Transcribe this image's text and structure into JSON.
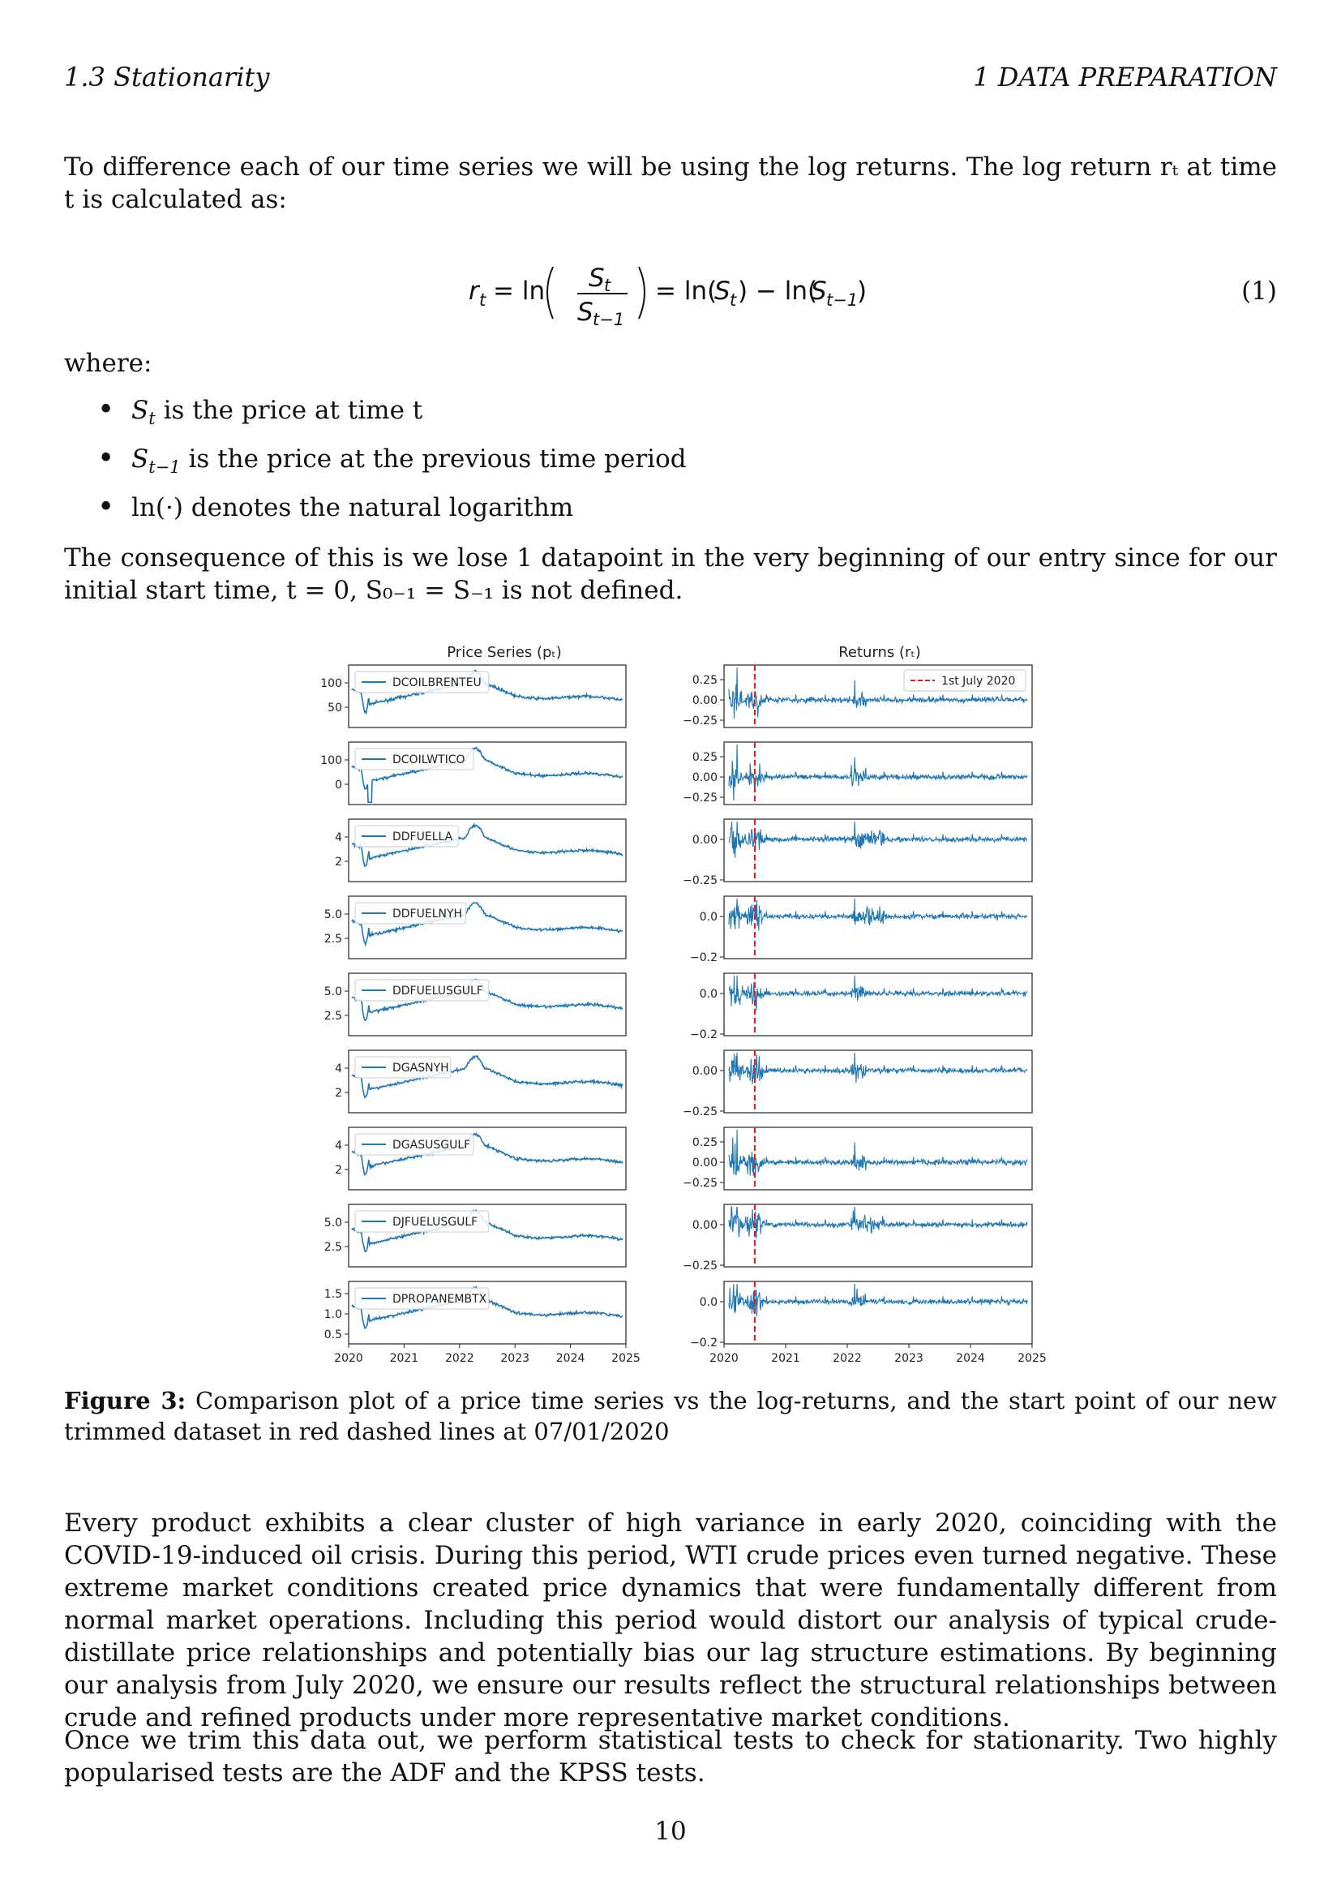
{
  "header": {
    "left": "1.3    Stationarity",
    "right": "1    DATA PREPARATION"
  },
  "intro": "To difference each of our time series we will be using the log returns.  The log return rₜ at time t is calculated as:",
  "equation": {
    "number": "(1)"
  },
  "where_label": "where:",
  "bullets": [
    "is the price at time t",
    "is the price at the previous time period",
    "denotes the natural logarithm"
  ],
  "consequence": "The consequence of this is we lose 1 datapoint in the very beginning of our entry since for our initial start time, t = 0, S₀₋₁ = S₋₁ is not defined.",
  "chart_data": [
    {
      "type": "line",
      "title": "Price Series (pₜ)",
      "x_ticks": [
        "2020",
        "2021",
        "2022",
        "2023",
        "2024",
        "2025"
      ],
      "xlim": [
        2020,
        2025
      ],
      "panels": [
        {
          "name": "DCOILBRENTEU",
          "yticks": [
            "100",
            "50"
          ],
          "ylim": [
            0,
            140
          ]
        },
        {
          "name": "DCOILWTICO",
          "yticks": [
            "100",
            "0"
          ],
          "ylim": [
            -40,
            140
          ]
        },
        {
          "name": "DDFUELLA",
          "yticks": [
            "4",
            "2"
          ],
          "ylim": [
            0.8,
            5
          ]
        },
        {
          "name": "DDFUELNYH",
          "yticks": [
            "5.0",
            "2.5"
          ],
          "ylim": [
            0.8,
            5.6
          ]
        },
        {
          "name": "DDFUELUSGULF",
          "yticks": [
            "5.0",
            "2.5"
          ],
          "ylim": [
            0.8,
            5.6
          ]
        },
        {
          "name": "DGASNYH",
          "yticks": [
            "4",
            "2"
          ],
          "ylim": [
            0.5,
            4.8
          ]
        },
        {
          "name": "DGASUSGULF",
          "yticks": [
            "4",
            "2"
          ],
          "ylim": [
            0.5,
            4.8
          ]
        },
        {
          "name": "DJFUELUSGULF",
          "yticks": [
            "5.0",
            "2.5"
          ],
          "ylim": [
            0.6,
            5.5
          ]
        },
        {
          "name": "DPROPANEMBTX",
          "yticks": [
            "1.5",
            "1.0",
            "0.5"
          ],
          "ylim": [
            0.25,
            1.65
          ]
        }
      ]
    },
    {
      "type": "line",
      "title": "Returns (rₜ)",
      "x_ticks": [
        "2020",
        "2021",
        "2022",
        "2023",
        "2024",
        "2025"
      ],
      "xlim": [
        2020,
        2025
      ],
      "legend": "1st July 2020",
      "vline_date": "2020-07-01",
      "panels": [
        {
          "yticks": [
            "0.25",
            "0.00",
            "−0.25"
          ],
          "ylim": [
            -0.3,
            0.35
          ]
        },
        {
          "yticks": [
            "0.25",
            "0.00",
            "−0.25"
          ],
          "ylim": [
            -0.3,
            0.35
          ]
        },
        {
          "yticks": [
            "0.00",
            "−0.25"
          ],
          "ylim": [
            -0.32,
            0.15
          ]
        },
        {
          "yticks": [
            "0.0",
            "−0.2"
          ],
          "ylim": [
            -0.25,
            0.12
          ]
        },
        {
          "yticks": [
            "0.0",
            "−0.2"
          ],
          "ylim": [
            -0.25,
            0.12
          ]
        },
        {
          "yticks": [
            "0.00",
            "−0.25"
          ],
          "ylim": [
            -0.32,
            0.15
          ]
        },
        {
          "yticks": [
            "0.25",
            "0.00",
            "−0.25"
          ],
          "ylim": [
            -0.3,
            0.35
          ]
        },
        {
          "yticks": [
            "0.00",
            "−0.25"
          ],
          "ylim": [
            -0.32,
            0.15
          ]
        },
        {
          "yticks": [
            "0.0",
            "−0.2"
          ],
          "ylim": [
            -0.25,
            0.12
          ]
        }
      ]
    }
  ],
  "caption_label": "Figure 3:",
  "caption_text": " Comparison plot of a price time series vs the log-returns, and the start point of our new trimmed dataset in red dashed lines at 07/01/2020",
  "para2": "Every product exhibits a clear cluster of high variance in early 2020, coinciding with the COVID-19-induced oil crisis. During this period, WTI crude prices even turned negative. These extreme market conditions created price dynamics that were fundamentally different from normal market operations. Including this period would distort our analysis of typical crude-distillate price relationships and potentially bias our lag structure estimations. By beginning our analysis from July 2020, we ensure our results reflect the structural relationships between crude and refined products under more representative market conditions.",
  "para3": "Once we trim this data out, we perform statistical tests to check for stationarity. Two highly popularised tests are the ADF and the KPSS tests.",
  "page_number": "10"
}
